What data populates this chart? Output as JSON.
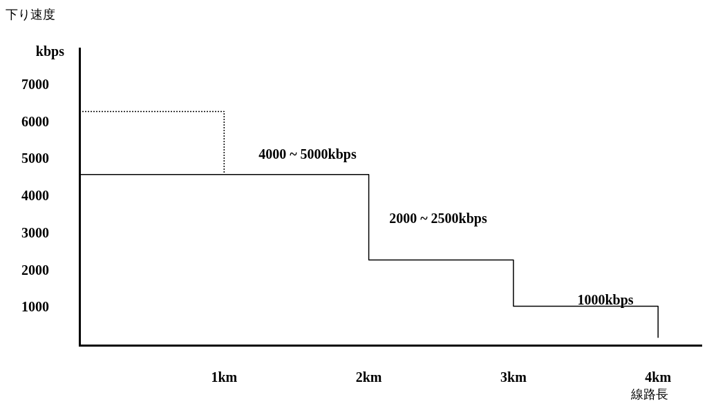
{
  "chart_data": {
    "type": "step",
    "title": "下り速度",
    "ylabel": "kbps",
    "xlabel": "線路長",
    "xlim": [
      0,
      4.3
    ],
    "xticks": [
      {
        "value": 1,
        "label": "1km"
      },
      {
        "value": 2,
        "label": "2km"
      },
      {
        "value": 3,
        "label": "3km"
      },
      {
        "value": 4,
        "label": "4km"
      }
    ],
    "ylim": [
      0,
      8000
    ],
    "yticks": [
      1000,
      2000,
      3000,
      4000,
      5000,
      6000,
      7000
    ],
    "series": [
      {
        "color": "#000000",
        "x": [
          0,
          2,
          3,
          4
        ],
        "values": [
          4600,
          2300,
          1050,
          200
        ],
        "line_style": "solid"
      },
      {
        "color": "#000000",
        "x": [
          0,
          1
        ],
        "values": [
          6300,
          4600
        ],
        "line_style": "dotted"
      }
    ],
    "annotations": [
      "4000 ~ 5000kbps",
      "2000 ~ 2500kbps",
      "1000kbps"
    ],
    "marker": "none",
    "legend": false
  }
}
